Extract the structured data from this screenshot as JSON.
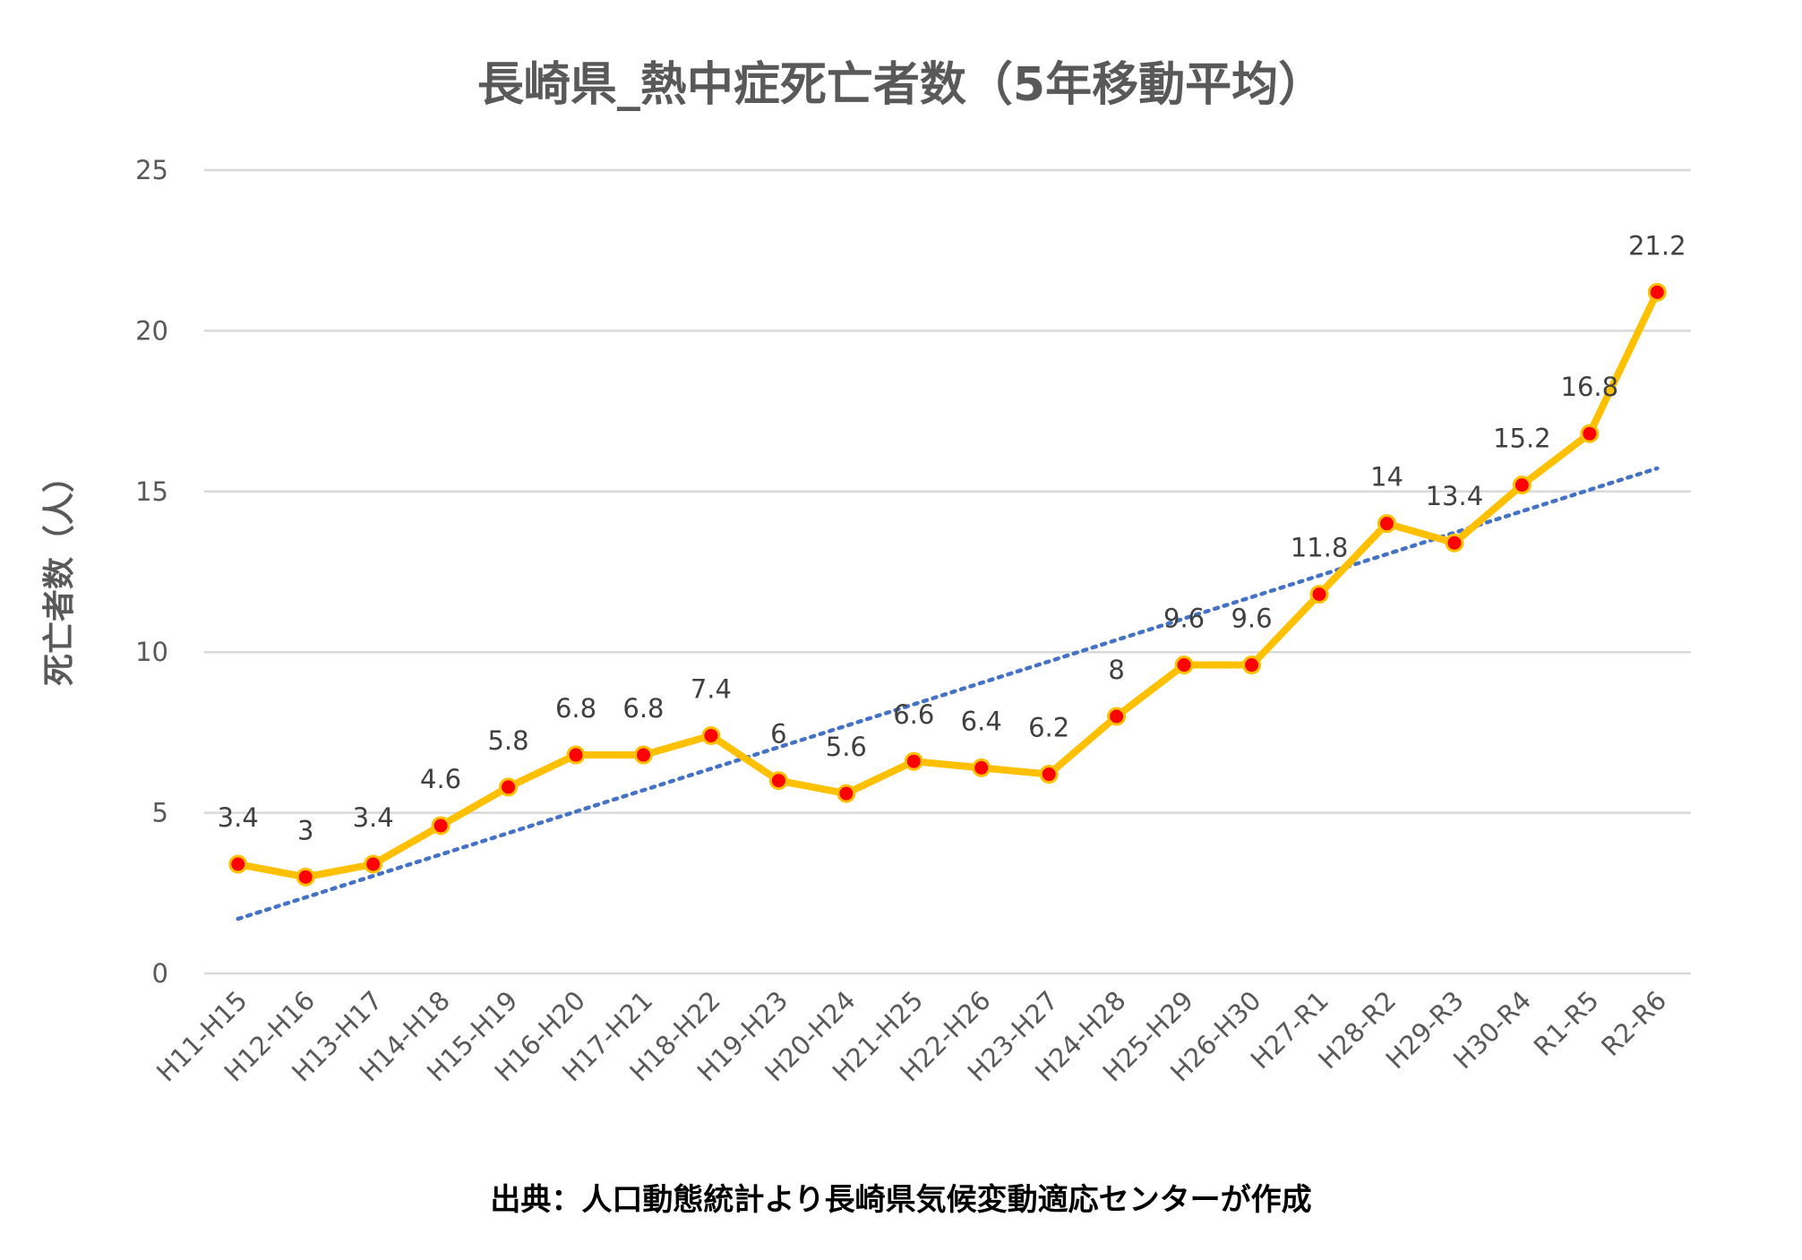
{
  "chart_data": {
    "type": "line",
    "title": "長崎県_熱中症死亡者数（5年移動平均）",
    "ylabel": "死亡者数（人）",
    "xlabel": "",
    "source": "出典：人口動態統計より長崎県気候変動適応センターが作成",
    "categories": [
      "H11-H15",
      "H12-H16",
      "H13-H17",
      "H14-H18",
      "H15-H19",
      "H16-H20",
      "H17-H21",
      "H18-H22",
      "H19-H23",
      "H20-H24",
      "H21-H25",
      "H22-H26",
      "H23-H27",
      "H24-H28",
      "H25-H29",
      "H26-H30",
      "H27-R1",
      "H28-R2",
      "H29-R3",
      "H30-R4",
      "R1-R5",
      "R2-R6"
    ],
    "values": [
      3.4,
      3,
      3.4,
      4.6,
      5.8,
      6.8,
      6.8,
      7.4,
      6,
      5.6,
      6.6,
      6.4,
      6.2,
      8,
      9.6,
      9.6,
      11.8,
      14,
      13.4,
      15.2,
      16.8,
      21.2
    ],
    "data_labels": [
      "3.4",
      "3",
      "3.4",
      "4.6",
      "5.8",
      "6.8",
      "6.8",
      "7.4",
      "6",
      "5.6",
      "6.6",
      "6.4",
      "6.2",
      "8",
      "9.6",
      "9.6",
      "11.8",
      "14",
      "13.4",
      "15.2",
      "16.8",
      "21.2"
    ],
    "ylim": [
      0,
      25
    ],
    "yticks": [
      "0",
      "5",
      "10",
      "15",
      "20",
      "25"
    ],
    "grid": true,
    "legend": "none",
    "trendline": "linear (dotted)",
    "colors": {
      "line": "#FFC000",
      "marker": "#FF0000",
      "trendline": "#4472C4",
      "grid": "#D9D9D9",
      "text": "#595959"
    }
  }
}
